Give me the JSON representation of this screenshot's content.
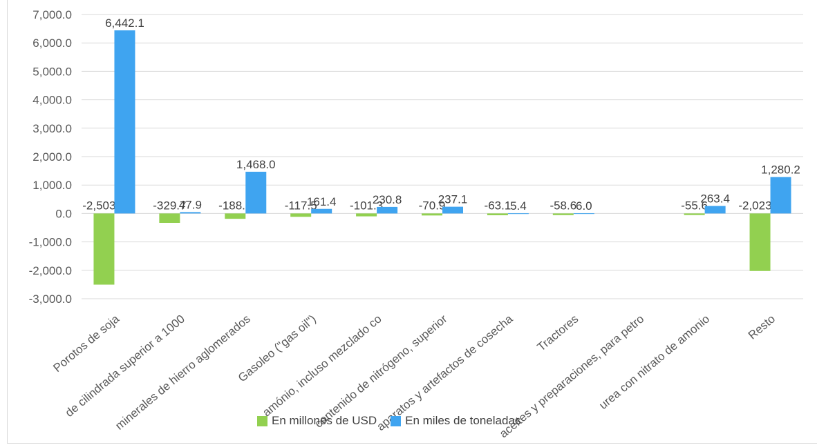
{
  "chart_data": {
    "type": "bar",
    "categories": [
      "Porotos de soja",
      "de cilindrada superior a 1000",
      "minerales de hierro aglomerados",
      "Gasoleo (\"gas oil\")",
      "amónio, incluso mezclado co",
      "contenido de nitrógeno, superior",
      "aparatos y artefactos de cosecha",
      "Tractores",
      "aceites y preparaciones, para petro",
      "urea con nitrato de amonio",
      "Resto"
    ],
    "series": [
      {
        "name": "En millones  de USD",
        "color": "#92d050",
        "values": [
          -2503.8,
          -329.7,
          -188.2,
          -117.5,
          -101.3,
          -70.9,
          -63.1,
          -58.6,
          null,
          -55.6,
          -2023.7
        ],
        "labels": [
          "-2,503.8",
          "-329.7",
          "-188.2",
          "-117.5",
          "-101.3",
          "-70.9",
          "-63.1",
          "-58.6",
          "",
          "-55.6",
          "-2,023.7"
        ]
      },
      {
        "name": "En miles de toneladas",
        "color": "#3fa4f0",
        "values": [
          6442.1,
          47.9,
          1468.0,
          161.4,
          230.8,
          237.1,
          5.4,
          6.0,
          null,
          263.4,
          1280.2
        ],
        "labels": [
          "6,442.1",
          "47.9",
          "1,468.0",
          "161.4",
          "230.8",
          "237.1",
          "5.4",
          "6.0",
          "",
          "263.4",
          "1,280.2"
        ]
      }
    ],
    "yticks": [
      "7,000.0",
      "6,000.0",
      "5,000.0",
      "4,000.0",
      "3,000.0",
      "2,000.0",
      "1,000.0",
      "0.0",
      "-1,000.0",
      "-2,000.0",
      "-3,000.0"
    ],
    "ylim": [
      -3000,
      7000
    ],
    "grid": true,
    "legend": "bottom"
  }
}
